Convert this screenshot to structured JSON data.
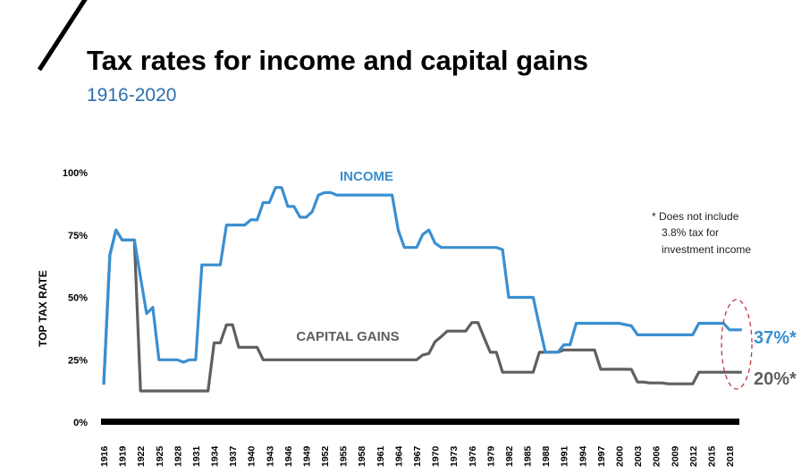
{
  "chart_data": {
    "type": "line",
    "title": "Tax rates for income and capital gains",
    "subtitle": "1916-2020",
    "ylabel": "TOP TAX RATE",
    "xlabel": "",
    "ylim": [
      0,
      100
    ],
    "xlim": [
      1916,
      2020
    ],
    "y_ticks": [
      "0%",
      "25%",
      "50%",
      "75%",
      "100%"
    ],
    "y_tick_values": [
      0,
      25,
      50,
      75,
      100
    ],
    "x_ticks": [
      "1916",
      "1919",
      "1922",
      "1925",
      "1928",
      "1931",
      "1934",
      "1937",
      "1940",
      "1943",
      "1946",
      "1949",
      "1952",
      "1955",
      "1958",
      "1961",
      "1964",
      "1967",
      "1970",
      "1973",
      "1976",
      "1979",
      "1982",
      "1985",
      "1988",
      "1991",
      "1994",
      "1997",
      "2000",
      "2003",
      "2006",
      "2009",
      "2012",
      "2015",
      "2018"
    ],
    "grid": false,
    "start_year": 1916,
    "series": [
      {
        "name": "INCOME",
        "color": "#3a8fd0",
        "end_label": "37%*",
        "values": [
          15,
          67,
          77,
          73,
          73,
          73,
          58,
          43.5,
          46,
          25,
          25,
          25,
          25,
          24,
          25,
          25,
          63,
          63,
          63,
          63,
          79,
          79,
          79,
          79,
          81.1,
          81,
          88,
          88,
          94,
          94,
          86.45,
          86.45,
          82.13,
          82.13,
          84.36,
          91,
          92,
          92,
          91,
          91,
          91,
          91,
          91,
          91,
          91,
          91,
          91,
          91,
          77,
          70,
          70,
          70,
          75.25,
          77,
          71.75,
          70,
          70,
          70,
          70,
          70,
          70,
          70,
          70,
          70,
          70,
          69.13,
          50,
          50,
          50,
          50,
          50,
          38.5,
          28,
          28,
          28,
          31,
          31,
          39.6,
          39.6,
          39.6,
          39.6,
          39.6,
          39.6,
          39.6,
          39.6,
          39.1,
          38.6,
          35,
          35,
          35,
          35,
          35,
          35,
          35,
          35,
          35,
          35,
          39.6,
          39.6,
          39.6,
          39.6,
          39.6,
          37,
          37,
          37
        ]
      },
      {
        "name": "CAPITAL GAINS",
        "color": "#5f5f5f",
        "end_label": "20%*",
        "values": [
          15,
          67,
          77,
          73,
          73,
          73,
          12.5,
          12.5,
          12.5,
          12.5,
          12.5,
          12.5,
          12.5,
          12.5,
          12.5,
          12.5,
          12.5,
          12.5,
          31.8,
          31.8,
          39,
          39,
          30,
          30,
          30,
          30,
          25,
          25,
          25,
          25,
          25,
          25,
          25,
          25,
          25,
          25,
          25,
          25,
          25,
          25,
          25,
          25,
          25,
          25,
          25,
          25,
          25,
          25,
          25,
          25,
          25,
          25,
          26.9,
          27.5,
          32.21,
          34.25,
          36.5,
          36.5,
          36.5,
          36.5,
          39.875,
          39.875,
          33.85,
          28,
          28,
          20,
          20,
          20,
          20,
          20,
          20,
          28,
          28,
          28,
          28,
          28.93,
          28.93,
          28.93,
          28.93,
          28.93,
          28.93,
          21.19,
          21.19,
          21.19,
          21.19,
          21.17,
          21.16,
          16.05,
          16.05,
          15.7,
          15.7,
          15.7,
          15.35,
          15.35,
          15.35,
          15.35,
          15.35,
          20,
          20,
          20,
          20,
          20,
          20,
          20,
          20
        ]
      }
    ],
    "annotations": {
      "note_line1": "* Does not include",
      "note_line2": "3.8% tax for",
      "note_line3": "investment income",
      "highlight_color": "#c0393f"
    }
  }
}
